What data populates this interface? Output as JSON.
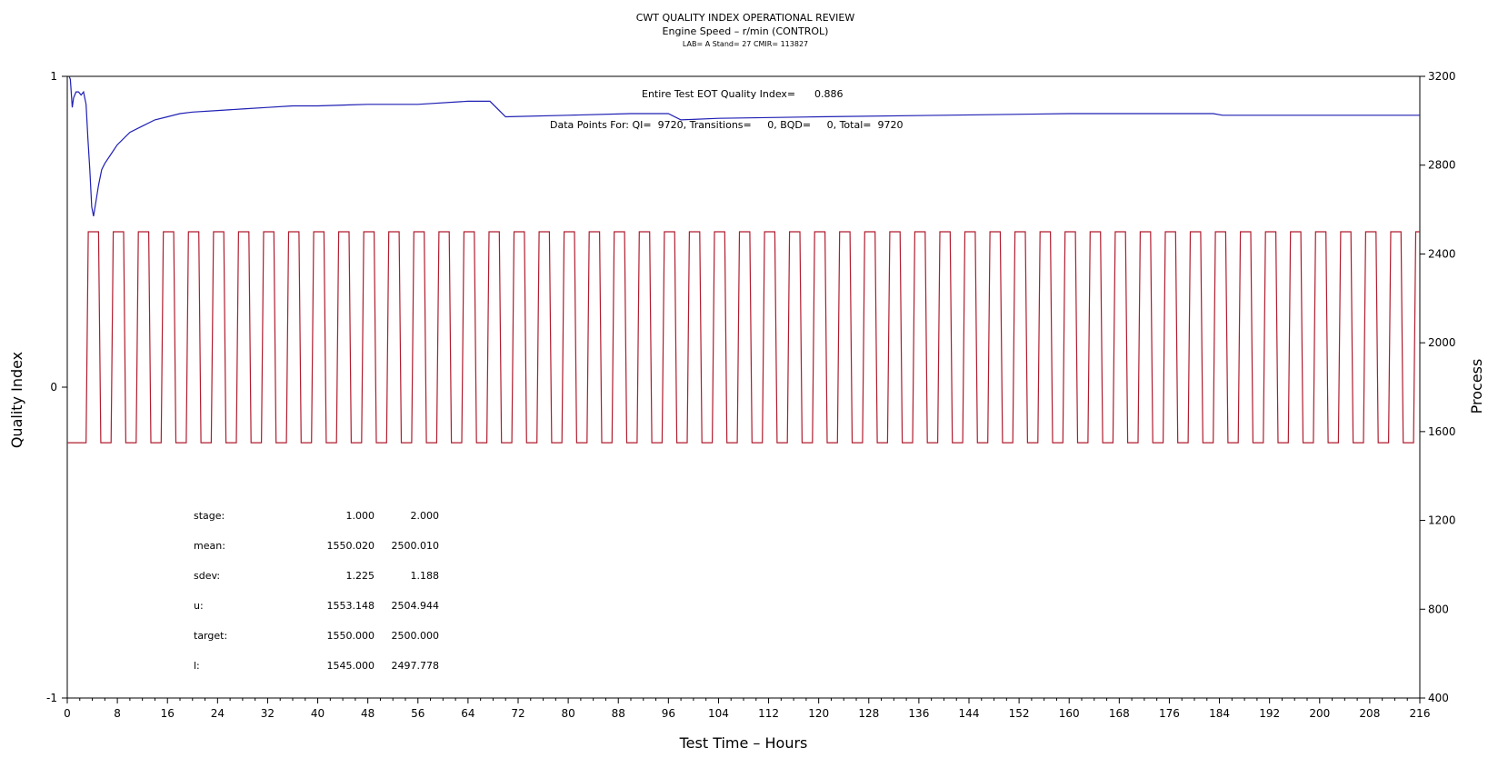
{
  "chart_data": {
    "type": "line",
    "title": "CWT QUALITY INDEX OPERATIONAL REVIEW",
    "subtitle": "Engine Speed – r/min (CONTROL)",
    "subtitle2": "LAB= A Stand= 27 CMIR= 113827",
    "xlabel": "Test Time – Hours",
    "ylabel_left": "Quality Index",
    "ylabel_right": "Process",
    "xlim": [
      0,
      216
    ],
    "ylim_left": [
      -1,
      1
    ],
    "ylim_right": [
      400,
      3200
    ],
    "x_ticks": [
      0,
      8,
      16,
      24,
      32,
      40,
      48,
      56,
      64,
      72,
      80,
      88,
      96,
      104,
      112,
      120,
      128,
      136,
      144,
      152,
      160,
      168,
      176,
      184,
      192,
      200,
      208,
      216
    ],
    "y_ticks_left": [
      -1,
      0,
      1
    ],
    "y_ticks_right": [
      400,
      800,
      1200,
      1600,
      2000,
      2400,
      2800,
      3200
    ],
    "annotations": {
      "eot_label": "Entire Test EOT Quality Index=",
      "eot_value": "0.886",
      "points_text": "Data Points For: QI=  9720, Transitions=     0, BQD=     0, Total=  9720"
    },
    "series": [
      {
        "axis": "left",
        "color": "#1f1fb4",
        "x": [
          0.3,
          0.5,
          0.8,
          1.0,
          1.4,
          1.8,
          2.2,
          2.6,
          3.0,
          3.3,
          3.6,
          3.9,
          4.2,
          4.6,
          5.0,
          5.5,
          6.0,
          7.0,
          8.0,
          10.0,
          12.0,
          14.0,
          16.0,
          18.0,
          20.0,
          24.0,
          28.0,
          32.0,
          36.0,
          40.0,
          48.0,
          56.0,
          64.0,
          67.5,
          70.0,
          80.0,
          90.0,
          96.0,
          98.0,
          104.0,
          120.0,
          140.0,
          160.0,
          170.0,
          183.0,
          184.5,
          190.0,
          200.0,
          204.0,
          206.0,
          216.0
        ],
        "values": [
          1.0,
          0.99,
          0.9,
          0.93,
          0.95,
          0.95,
          0.94,
          0.95,
          0.91,
          0.8,
          0.7,
          0.58,
          0.55,
          0.6,
          0.65,
          0.7,
          0.72,
          0.75,
          0.78,
          0.82,
          0.84,
          0.86,
          0.87,
          0.88,
          0.885,
          0.89,
          0.895,
          0.9,
          0.905,
          0.905,
          0.91,
          0.91,
          0.92,
          0.92,
          0.87,
          0.875,
          0.88,
          0.88,
          0.86,
          0.865,
          0.87,
          0.875,
          0.88,
          0.88,
          0.88,
          0.875,
          0.875,
          0.875,
          0.875,
          0.875,
          0.875
        ]
      },
      {
        "axis": "right",
        "color": "#b01c2e",
        "pattern": "square wave",
        "low": 1550,
        "high": 2500,
        "first_rise": 3.0,
        "cycle_hours": 4.0,
        "high_hours": 2.0,
        "cycles": 54
      }
    ],
    "stats_table": {
      "rows": [
        {
          "label": "stage:",
          "v1": "1.000",
          "v2": "2.000"
        },
        {
          "label": "mean:",
          "v1": "1550.020",
          "v2": "2500.010"
        },
        {
          "label": "sdev:",
          "v1": "1.225",
          "v2": "1.188"
        },
        {
          "label": "u:",
          "v1": "1553.148",
          "v2": "2504.944"
        },
        {
          "label": "target:",
          "v1": "1550.000",
          "v2": "2500.000"
        },
        {
          "label": "l:",
          "v1": "1545.000",
          "v2": "2497.778"
        }
      ]
    }
  }
}
